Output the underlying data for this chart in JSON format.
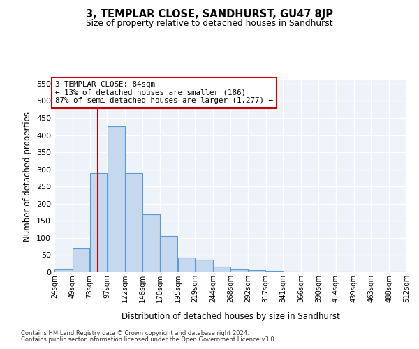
{
  "title": "3, TEMPLAR CLOSE, SANDHURST, GU47 8JP",
  "subtitle": "Size of property relative to detached houses in Sandhurst",
  "xlabel": "Distribution of detached houses by size in Sandhurst",
  "ylabel": "Number of detached properties",
  "bar_color": "#c5d8ed",
  "bar_edge_color": "#5b9bd5",
  "vline_color": "#cc0000",
  "vline_x": 84,
  "annotation_text": "3 TEMPLAR CLOSE: 84sqm\n← 13% of detached houses are smaller (186)\n87% of semi-detached houses are larger (1,277) →",
  "bin_edges": [
    24,
    49,
    73,
    97,
    122,
    146,
    170,
    195,
    219,
    244,
    268,
    292,
    317,
    341,
    366,
    390,
    414,
    439,
    463,
    488,
    512
  ],
  "bar_heights": [
    8,
    70,
    290,
    425,
    290,
    170,
    105,
    43,
    37,
    17,
    8,
    7,
    4,
    3,
    1,
    0,
    2,
    0,
    1,
    3
  ],
  "ylim": [
    0,
    560
  ],
  "yticks": [
    0,
    50,
    100,
    150,
    200,
    250,
    300,
    350,
    400,
    450,
    500,
    550
  ],
  "bg_color": "#eef3f9",
  "grid_color": "#ffffff",
  "footer1": "Contains HM Land Registry data © Crown copyright and database right 2024.",
  "footer2": "Contains public sector information licensed under the Open Government Licence v3.0."
}
